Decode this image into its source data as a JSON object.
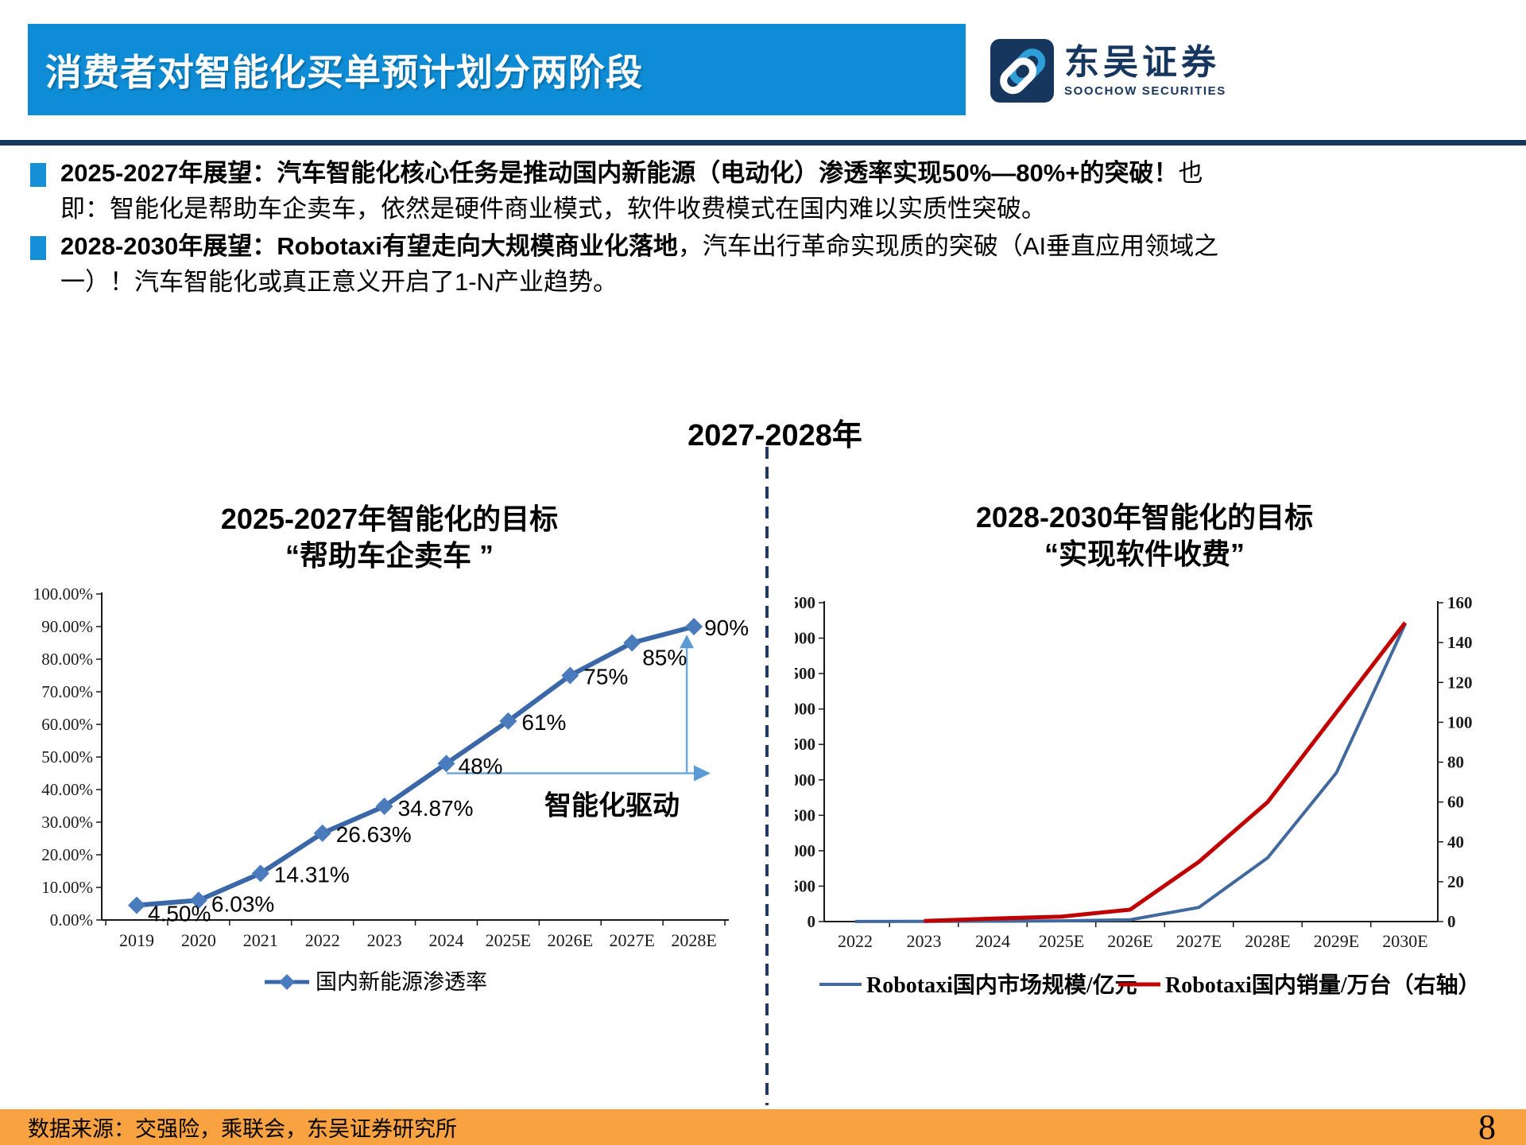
{
  "header": {
    "title": "消费者对智能化买单预计划分两阶段",
    "logo": {
      "cn": "东吴证券",
      "en": "SOOCHOW SECURITIES"
    }
  },
  "bullets": [
    {
      "lead": "2025-2027年展望：汽车智能化核心任务是推动国内新能源（电动化）渗透率实现50%—80%+的突破！",
      "rest": "也即：智能化是帮助车企卖车，依然是硬件商业模式，软件收费模式在国内难以实质性突破。"
    },
    {
      "lead": "2028-2030年展望：Robotaxi有望走向大规模商业化落地",
      "rest": "，汽车出行革命实现质的突破（AI垂直应用领域之一）！汽车智能化或真正意义开启了1-N产业趋势。"
    }
  ],
  "phase_label": "2027-2028年",
  "colors": {
    "banner_blue": "#0E8DD6",
    "navy": "#17365D",
    "footer_orange": "#F9A242",
    "nev_line": "#3A67A8",
    "nev_marker": "#4A7BBD",
    "annotation_blue": "#5B9BD5",
    "annotation_line": "#6FA8DC",
    "robotaxi_scale_blue": "#41699E",
    "robotaxi_sales_red": "#C00000"
  },
  "chart_data": [
    {
      "type": "line",
      "title": "2025-2027年智能化的目标",
      "subtitle": "“帮助车企卖车 ”",
      "categories": [
        "2019",
        "2020",
        "2021",
        "2022",
        "2023",
        "2024",
        "2025E",
        "2026E",
        "2027E",
        "2028E"
      ],
      "values": [
        4.5,
        6.03,
        14.31,
        26.63,
        34.87,
        48,
        61,
        75,
        85,
        90
      ],
      "point_labels": [
        "4.50%",
        "6.03%",
        "14.31%",
        "26.63%",
        "34.87%",
        "48%",
        "61%",
        "75%",
        "85%",
        "90%"
      ],
      "ylim": [
        0,
        100
      ],
      "ytick_step": 10,
      "legend": "国内新能源渗透率",
      "annotation": "智能化驱动",
      "grid": false,
      "legend_position": "bottom"
    },
    {
      "type": "line",
      "title": "2028-2030年智能化的目标",
      "subtitle": "“实现软件收费”",
      "categories": [
        "2022",
        "2023",
        "2024",
        "2025E",
        "2026E",
        "2027E",
        "2028E",
        "2029E",
        "2030E"
      ],
      "series": [
        {
          "name": "Robotaxi国内市场规模/亿元",
          "axis": "left",
          "color": "#41699E",
          "values": [
            2,
            3,
            5,
            10,
            25,
            200,
            900,
            2100,
            4200
          ]
        },
        {
          "name": "Robotaxi国内销量/万台（右轴）",
          "axis": "right",
          "color": "#C00000",
          "values": [
            null,
            0.3,
            1.5,
            2.5,
            6,
            30,
            60,
            105,
            150
          ]
        }
      ],
      "ylim_left": [
        0,
        4500
      ],
      "ytick_step_left": 500,
      "ylim_right": [
        0,
        160
      ],
      "ytick_step_right": 20,
      "grid": false,
      "legend_position": "bottom"
    }
  ],
  "footer": {
    "source": "数据来源：交强险，乘联会，东吴证券研究所",
    "page": "8"
  }
}
